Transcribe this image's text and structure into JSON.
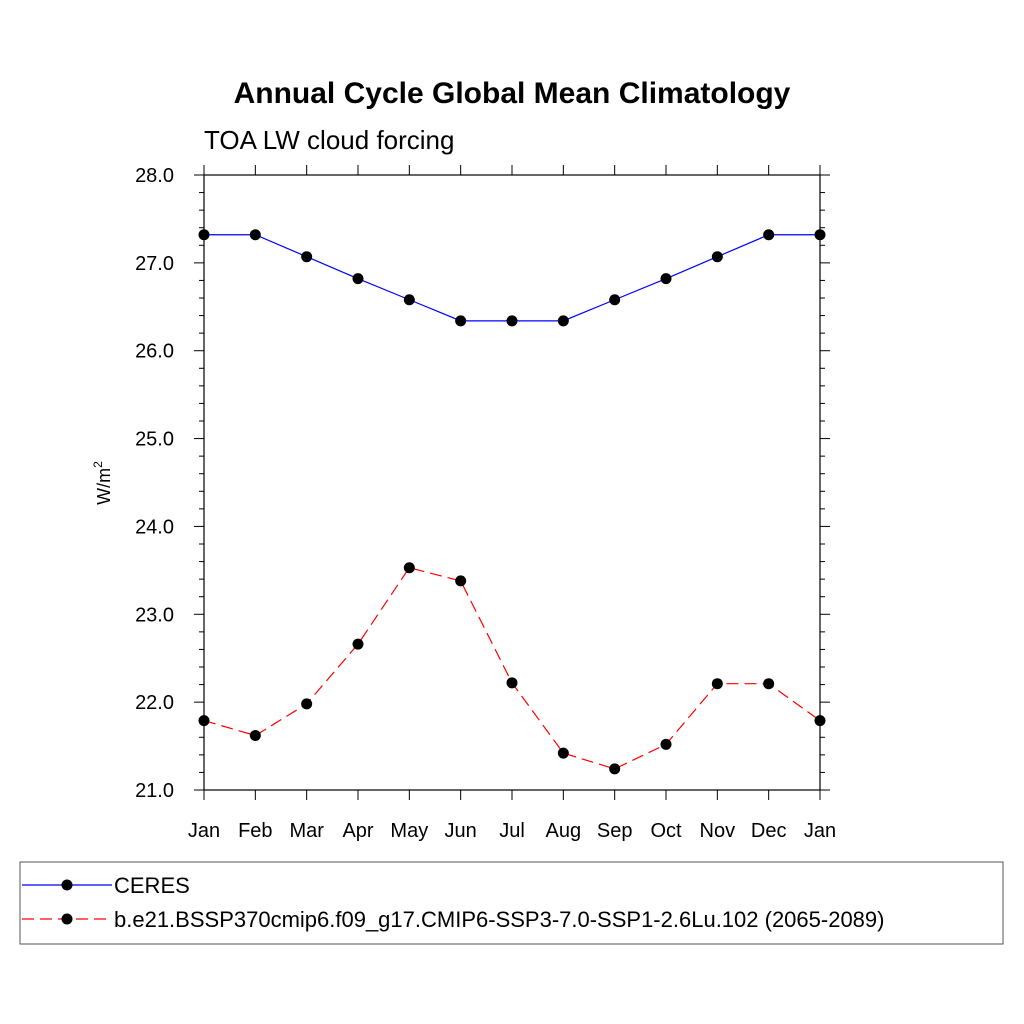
{
  "chart_data": {
    "type": "line",
    "title": "Annual Cycle Global Mean Climatology",
    "subtitle": "TOA LW cloud forcing",
    "ylabel": "W/m",
    "ylabel_superscript": "2",
    "xlabel": "",
    "categories": [
      "Jan",
      "Feb",
      "Mar",
      "Apr",
      "May",
      "Jun",
      "Jul",
      "Aug",
      "Sep",
      "Oct",
      "Nov",
      "Dec",
      "Jan"
    ],
    "ylim": [
      21.0,
      28.0
    ],
    "yticks": [
      "21.0",
      "22.0",
      "23.0",
      "24.0",
      "25.0",
      "26.0",
      "27.0",
      "28.0"
    ],
    "grid": false,
    "legend_position": "bottom",
    "series": [
      {
        "name": "CERES",
        "color": "#0000ff",
        "dash": "solid",
        "marker": "filled-circle",
        "values": [
          27.32,
          27.32,
          27.07,
          26.82,
          26.58,
          26.34,
          26.34,
          26.34,
          26.58,
          26.82,
          27.07,
          27.32,
          27.32
        ]
      },
      {
        "name": "b.e21.BSSP370cmip6.f09_g17.CMIP6-SSP3-7.0-SSP1-2.6Lu.102 (2065-2089)",
        "color": "#ff0000",
        "dash": "dashed",
        "marker": "filled-circle",
        "values": [
          21.79,
          21.62,
          21.98,
          22.66,
          23.53,
          23.38,
          22.22,
          21.42,
          21.24,
          21.52,
          22.21,
          22.21,
          21.79
        ]
      }
    ]
  }
}
